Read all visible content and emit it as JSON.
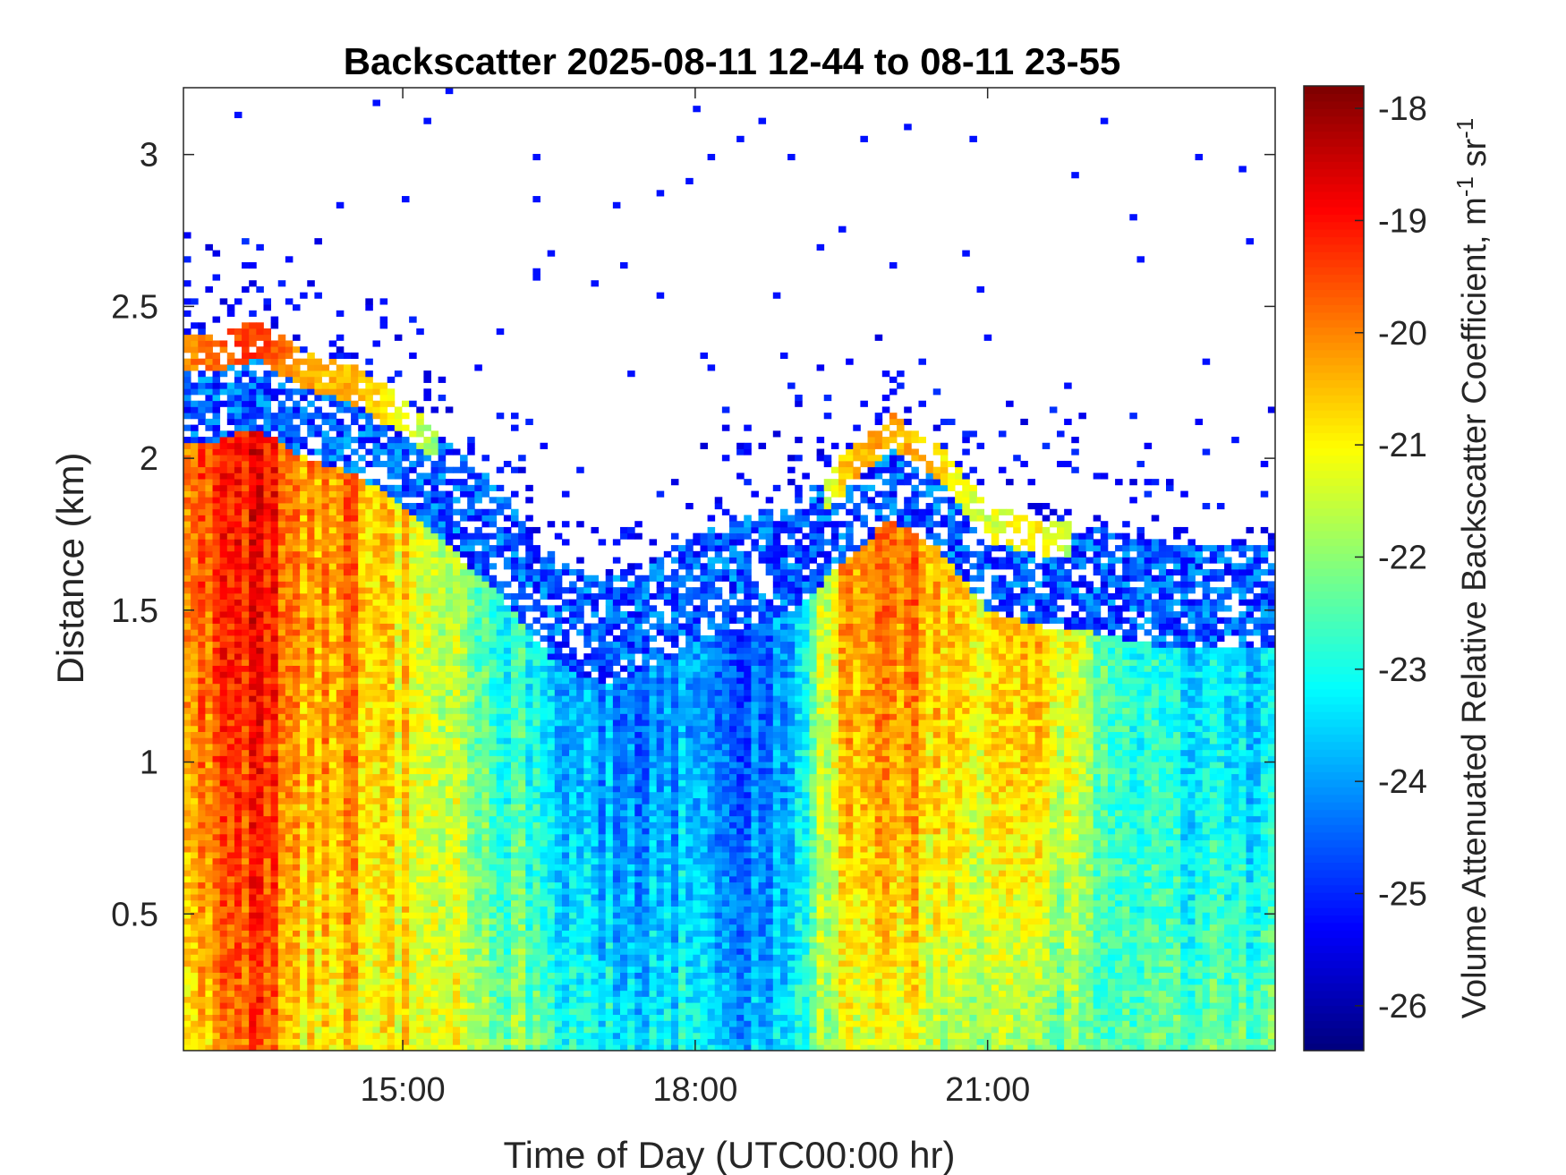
{
  "chart_data": {
    "type": "heatmap",
    "title": "Backscatter 2025-08-11 12-44 to 08-11 23-55",
    "xlabel": "Time of Day (UTC00:00 hr)",
    "ylabel": "Distance (km)",
    "xlim": [
      12.75,
      23.95
    ],
    "ylim": [
      0.05,
      3.22
    ],
    "x_ticks": [
      {
        "value": 15,
        "label": "15:00"
      },
      {
        "value": 18,
        "label": "18:00"
      },
      {
        "value": 21,
        "label": "21:00"
      }
    ],
    "y_ticks": [
      {
        "value": 0.5,
        "label": "0.5"
      },
      {
        "value": 1,
        "label": "1"
      },
      {
        "value": 1.5,
        "label": "1.5"
      },
      {
        "value": 2,
        "label": "2"
      },
      {
        "value": 2.5,
        "label": "2.5"
      },
      {
        "value": 3,
        "label": "3"
      }
    ],
    "colorbar": {
      "label_main": "Volume Attenuated Relative Backscatter Coefficient, m",
      "label_sup1": "-1",
      "label_mid": " sr",
      "label_sup2": "-1",
      "range": [
        -26.4,
        -17.8
      ],
      "colormap": "jet",
      "ticks": [
        {
          "value": -18,
          "label": "-18"
        },
        {
          "value": -19,
          "label": "-19"
        },
        {
          "value": -20,
          "label": "-20"
        },
        {
          "value": -21,
          "label": "-21"
        },
        {
          "value": -22,
          "label": "-22"
        },
        {
          "value": -23,
          "label": "-23"
        },
        {
          "value": -24,
          "label": "-24"
        },
        {
          "value": -25,
          "label": "-25"
        },
        {
          "value": -26,
          "label": "-26"
        }
      ]
    },
    "grid": false,
    "profile_summary": [
      {
        "time": 13.0,
        "top_km": 2.4,
        "surface_value": -20.5,
        "peak_value": -19.5
      },
      {
        "time": 13.5,
        "top_km": 2.45,
        "surface_value": -19.5,
        "peak_value": -18.8
      },
      {
        "time": 14.0,
        "top_km": 2.35,
        "surface_value": -20.8,
        "peak_value": -20.0
      },
      {
        "time": 14.5,
        "top_km": 2.3,
        "surface_value": -20.8,
        "peak_value": -20.0
      },
      {
        "time": 15.0,
        "top_km": 2.2,
        "surface_value": -21.0,
        "peak_value": -20.8
      },
      {
        "time": 15.5,
        "top_km": 2.05,
        "surface_value": -21.3,
        "peak_value": -21.8
      },
      {
        "time": 16.0,
        "top_km": 1.9,
        "surface_value": -21.8,
        "peak_value": -22.6
      },
      {
        "time": 16.5,
        "top_km": 1.7,
        "surface_value": -22.5,
        "peak_value": -23.5
      },
      {
        "time": 17.0,
        "top_km": 1.6,
        "surface_value": -23.0,
        "peak_value": -24.0
      },
      {
        "time": 17.5,
        "top_km": 1.65,
        "surface_value": -23.2,
        "peak_value": -24.2
      },
      {
        "time": 18.0,
        "top_km": 1.75,
        "surface_value": -23.0,
        "peak_value": -24.0
      },
      {
        "time": 18.5,
        "top_km": 1.8,
        "surface_value": -24.0,
        "peak_value": -24.8
      },
      {
        "time": 19.0,
        "top_km": 1.85,
        "surface_value": -23.0,
        "peak_value": -23.8
      },
      {
        "time": 19.5,
        "top_km": 2.0,
        "surface_value": -21.3,
        "peak_value": -20.2
      },
      {
        "time": 20.0,
        "top_km": 2.15,
        "surface_value": -21.3,
        "peak_value": -19.8
      },
      {
        "time": 20.5,
        "top_km": 2.05,
        "surface_value": -21.5,
        "peak_value": -20.3
      },
      {
        "time": 21.0,
        "top_km": 1.85,
        "surface_value": -22.0,
        "peak_value": -21.0
      },
      {
        "time": 21.5,
        "top_km": 1.8,
        "surface_value": -22.2,
        "peak_value": -20.5
      },
      {
        "time": 22.0,
        "top_km": 1.78,
        "surface_value": -22.5,
        "peak_value": -21.8
      },
      {
        "time": 22.5,
        "top_km": 1.75,
        "surface_value": -22.5,
        "peak_value": -23.0
      },
      {
        "time": 23.0,
        "top_km": 1.72,
        "surface_value": -22.3,
        "peak_value": -23.2
      },
      {
        "time": 23.5,
        "top_km": 1.72,
        "surface_value": -22.2,
        "peak_value": -23.5
      }
    ],
    "data_gaps": [
      {
        "start": 19.08,
        "end": 19.12
      }
    ]
  }
}
